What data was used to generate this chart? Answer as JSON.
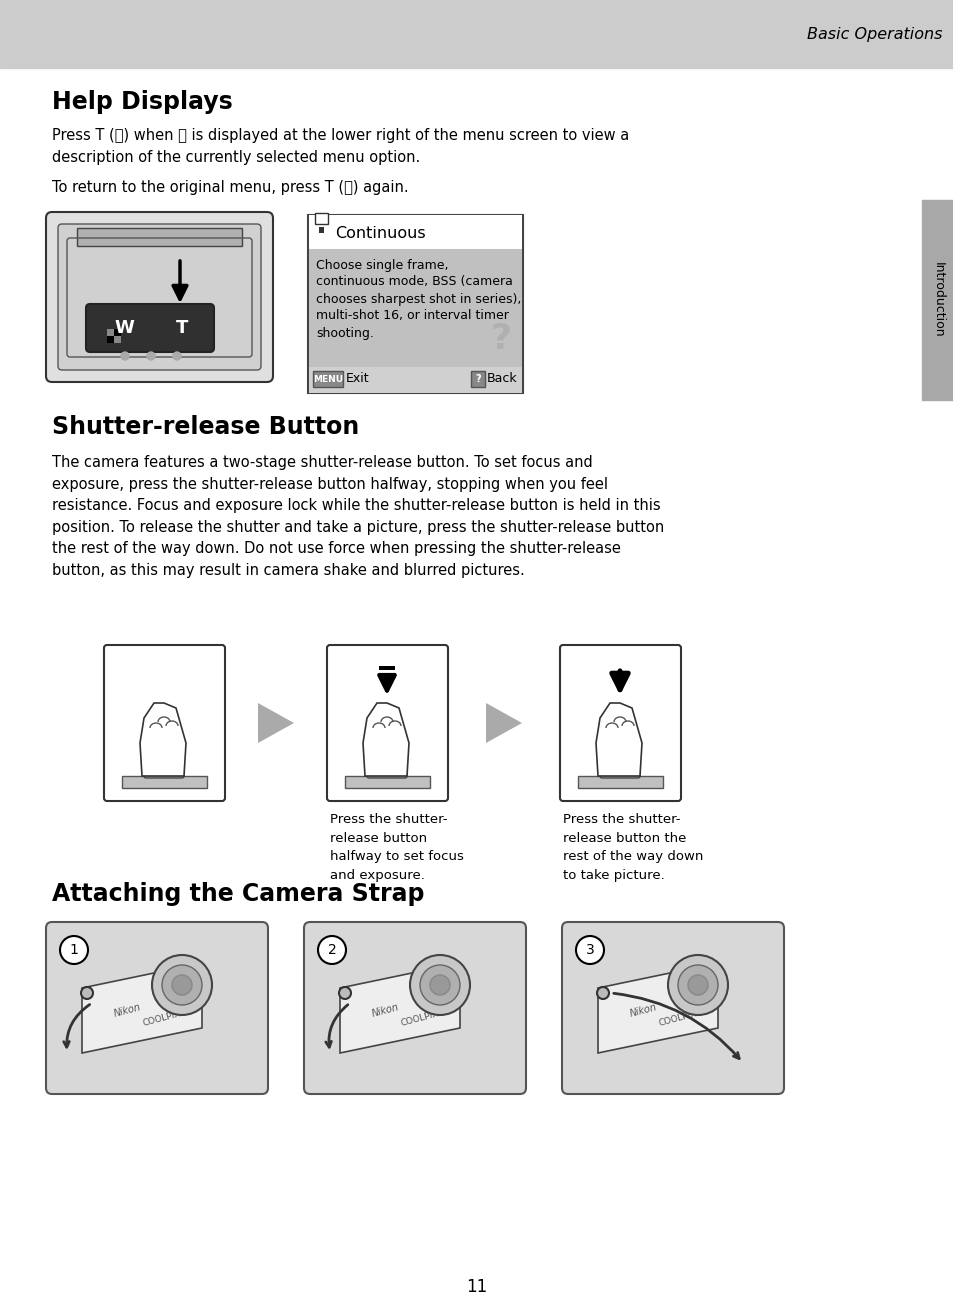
{
  "page_bg": "#ffffff",
  "header_bg": "#cccccc",
  "header_text": "Basic Operations",
  "sidebar_bg": "#a8a8a8",
  "sidebar_text": "Introduction",
  "section1_title": "Help Displays",
  "body1_line1": "Press T (ⓗ) when ⓗ is displayed at the lower right of the menu screen to view a",
  "body1_line2": "description of the currently selected menu option.",
  "body2": "To return to the original menu, press T (ⓗ) again.",
  "menu_title": "Continuous",
  "menu_body_lines": [
    "Choose single frame,",
    "continuous mode, BSS (camera",
    "chooses sharpest shot in series),",
    "multi-shot 16, or interval timer",
    "shooting."
  ],
  "menu_exit": "MENU Exit",
  "menu_back": "ⓗ Back",
  "section2_title": "Shutter-release Button",
  "section2_body": "The camera features a two-stage shutter-release button. To set focus and\nexposure, press the shutter-release button halfway, stopping when you feel\nresistance. Focus and exposure lock while the shutter-release button is held in this\nposition. To release the shutter and take a picture, press the shutter-release button\nthe rest of the way down. Do not use force when pressing the shutter-release\nbutton, as this may result in camera shake and blurred pictures.",
  "caption1": "Press the shutter-\nrelease button\nhalfway to set focus\nand exposure.",
  "caption2": "Press the shutter-\nrelease button the\nrest of the way down\nto take picture.",
  "section3_title": "Attaching the Camera Strap",
  "page_number": "11",
  "text_color": "#000000",
  "light_gray": "#e8e8e8",
  "med_gray": "#c0c0c0",
  "dark_gray": "#888888",
  "menu_body_bg": "#c0c0c0",
  "menu_header_bg": "#ffffff",
  "cam_img_bg": "#d8d8d8"
}
